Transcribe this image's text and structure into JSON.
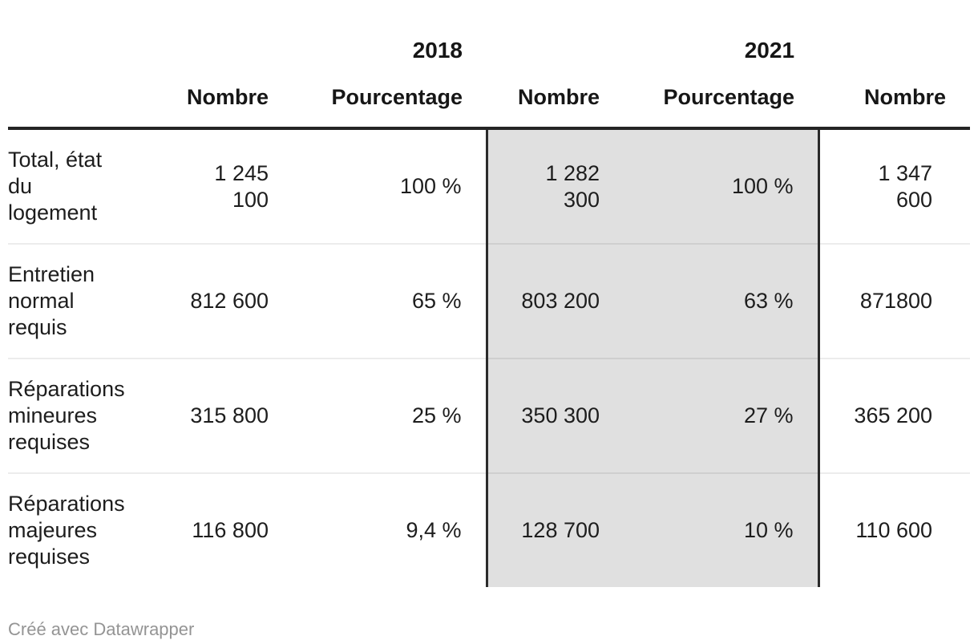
{
  "table": {
    "year_groups": [
      {
        "label": "2018",
        "columns": [
          "Nombre",
          "Pourcentage"
        ]
      },
      {
        "label": "2021",
        "columns": [
          "Nombre",
          "Pourcentage"
        ],
        "highlighted": true
      }
    ],
    "column_headers": [
      "Nombre",
      "Pourcentage",
      "Nombre",
      "Pourcentage",
      "Nombre"
    ],
    "rows": [
      {
        "label": "Total, état\ndu\nlogement",
        "values": [
          "1 245\n100",
          "100 %",
          "1 282\n300",
          "100 %",
          "1 347\n600"
        ]
      },
      {
        "label": "Entretien\nnormal\nrequis",
        "values": [
          "812 600",
          "65 %",
          "803 200",
          "63 %",
          "871800"
        ]
      },
      {
        "label": "Réparations\nmineures\nrequises",
        "values": [
          "315 800",
          "25 %",
          "350 300",
          "27 %",
          "365 200"
        ]
      },
      {
        "label": "Réparations\nmajeures\nrequises",
        "values": [
          "116 800",
          "9,4 %",
          "128 700",
          "10 %",
          "110 600"
        ]
      }
    ]
  },
  "footer": {
    "credit": "Créé avec Datawrapper"
  },
  "colors": {
    "text": "#1d1d1d",
    "header_text": "#161616",
    "header_rule": "#242424",
    "highlight_bg": "#e0e0e0",
    "highlight_border": "#2b2b2b",
    "row_divider": "#ededed",
    "muted": "#949494"
  }
}
